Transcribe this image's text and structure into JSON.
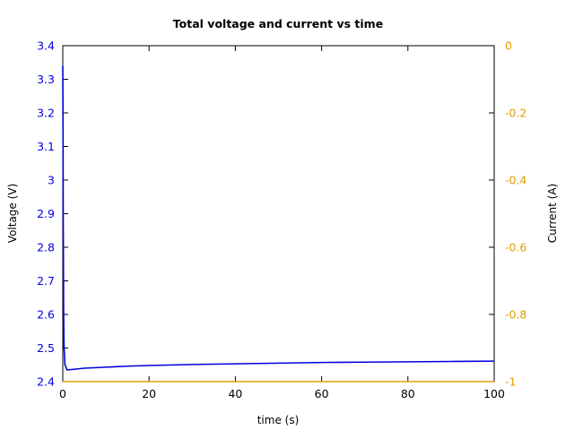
{
  "chart_data": {
    "type": "line",
    "title": "Total voltage and current vs time",
    "xlabel": "time (s)",
    "ylabel": "Voltage (V)",
    "y2label": "Current (A)",
    "xlim": [
      0,
      100
    ],
    "ylim": [
      2.4,
      3.4
    ],
    "y2lim": [
      -1,
      0
    ],
    "x_ticks": [
      "0",
      "20",
      "40",
      "60",
      "80",
      "100"
    ],
    "y_ticks": [
      "2.4",
      "2.5",
      "2.6",
      "2.7",
      "2.8",
      "2.9",
      "3",
      "3.1",
      "3.2",
      "3.3",
      "3.4"
    ],
    "y2_ticks": [
      "-1",
      "-0.8",
      "-0.6",
      "-0.4",
      "-0.2",
      "0"
    ],
    "grid": false,
    "colors": {
      "voltage": "#0000dd",
      "current": "#e0a000",
      "axes": "#000000"
    },
    "series": [
      {
        "axis": "left",
        "color": "#0000dd",
        "x": [
          0,
          0.05,
          0.1,
          0.2,
          0.3,
          0.5,
          1,
          2,
          5,
          10,
          15,
          20,
          30,
          40,
          50,
          60,
          70,
          80,
          90,
          100
        ],
        "y": [
          3.34,
          3.2,
          2.9,
          2.6,
          2.5,
          2.45,
          2.435,
          2.436,
          2.44,
          2.443,
          2.446,
          2.448,
          2.451,
          2.453,
          2.455,
          2.457,
          2.458,
          2.459,
          2.46,
          2.461
        ]
      },
      {
        "axis": "right",
        "color": "#e0a000",
        "x": [
          0,
          100
        ],
        "y": [
          -1,
          -1
        ]
      }
    ]
  }
}
